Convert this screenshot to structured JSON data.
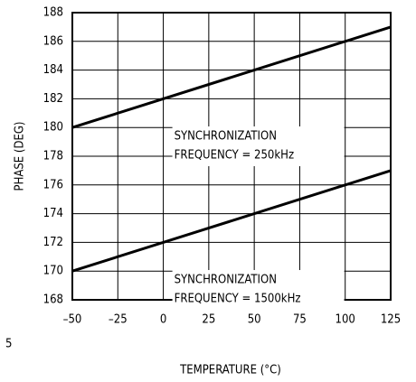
{
  "chart_data": {
    "type": "line",
    "x": [
      -50,
      125
    ],
    "series": [
      {
        "name": "250kHz",
        "color": "#000000",
        "values": [
          180,
          187
        ]
      },
      {
        "name": "1500kHz",
        "color": "#000000",
        "values": [
          170,
          177
        ]
      }
    ],
    "xlim": [
      -50,
      125
    ],
    "xticks": [
      {
        "value": -50,
        "label": "–50"
      },
      {
        "value": -25,
        "label": "–25"
      },
      0,
      25,
      50,
      75,
      100,
      125
    ],
    "ylim": [
      168,
      188
    ],
    "yticks": [
      168,
      170,
      172,
      174,
      176,
      178,
      180,
      182,
      184,
      186,
      188
    ],
    "grid": true,
    "xlabel": "TEMPERATURE (°C)",
    "ylabel": "PHASE (DEG)",
    "annotations": [
      {
        "lines": [
          "SYNCHRONIZATION",
          "FREQUENCY = 250kHz"
        ],
        "x": 2,
        "y": 180.2
      },
      {
        "lines": [
          "SYNCHRONIZATION",
          "FREQUENCY = 1500kHz"
        ],
        "x": 2,
        "y": 170.2
      }
    ],
    "fragment_text": "5"
  }
}
